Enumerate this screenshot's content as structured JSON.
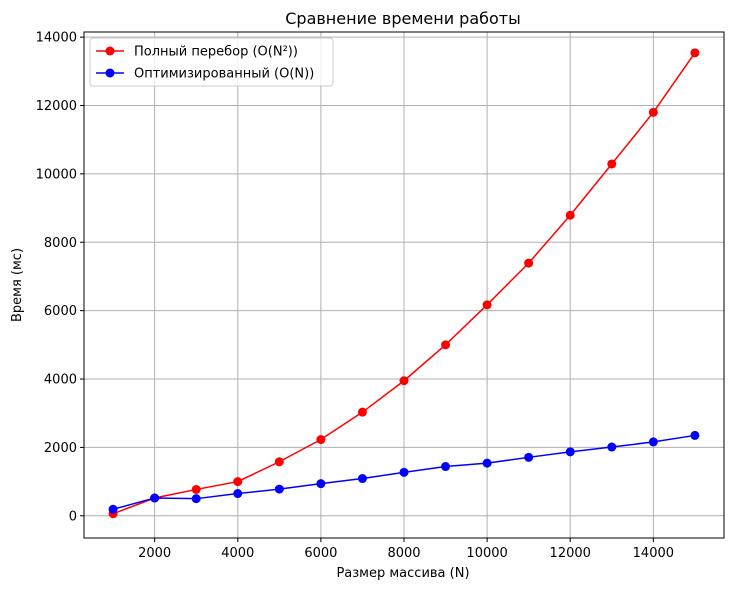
{
  "chart_data": {
    "type": "line",
    "title": "Сравнение времени работы",
    "xlabel": "Размер массива (N)",
    "ylabel": "Время (мс)",
    "xlim": [
      300,
      15700
    ],
    "ylim": [
      -650,
      14150
    ],
    "xticks": [
      2000,
      4000,
      6000,
      8000,
      10000,
      12000,
      14000
    ],
    "yticks": [
      0,
      2000,
      4000,
      6000,
      8000,
      10000,
      12000,
      14000
    ],
    "grid": true,
    "legend_position": "upper-left",
    "x": [
      1000,
      2000,
      3000,
      4000,
      5000,
      6000,
      7000,
      8000,
      9000,
      10000,
      11000,
      12000,
      13000,
      14000,
      15000
    ],
    "series": [
      {
        "name": "Полный перебор (O(N²))",
        "color": "#ff0000",
        "marker": "circle",
        "values": [
          60,
          520,
          770,
          1000,
          1580,
          2230,
          3030,
          3950,
          5000,
          6170,
          7390,
          8790,
          10290,
          11800,
          13540
        ]
      },
      {
        "name": "Оптимизированный (O(N))",
        "color": "#0000ff",
        "marker": "circle",
        "values": [
          190,
          520,
          500,
          650,
          780,
          940,
          1090,
          1270,
          1440,
          1540,
          1710,
          1870,
          2010,
          2160,
          2350
        ]
      }
    ]
  }
}
